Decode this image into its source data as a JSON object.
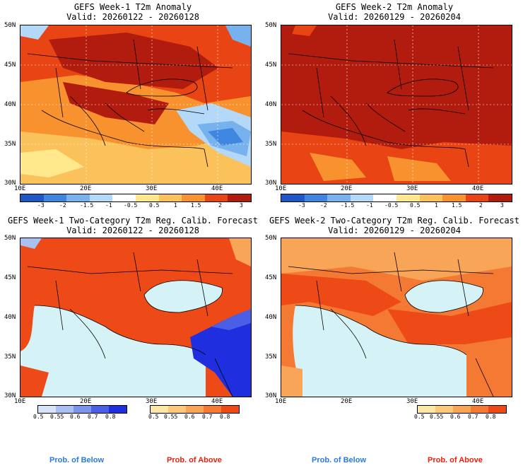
{
  "panels": [
    {
      "title": "GEFS Week-1 T2m Anomaly",
      "valid": "Valid: 20260122 - 20260128"
    },
    {
      "title": "GEFS Week-2 T2m Anomaly",
      "valid": "Valid: 20260129 - 20260204"
    },
    {
      "title": "GEFS Week-1 Two-Category T2m Reg. Calib. Forecast",
      "valid": "Valid: 20260122 - 20260128"
    },
    {
      "title": "GEFS Week-2 Two-Category T2m Reg. Calib. Forecast",
      "valid": "Valid: 20260129 - 20260204"
    }
  ],
  "axes": {
    "lat": [
      "50N",
      "45N",
      "40N",
      "35N",
      "30N"
    ],
    "lon": [
      "10E",
      "20E",
      "30E",
      "40E"
    ]
  },
  "anomaly_scale": [
    "-3",
    "-2",
    "-1.5",
    "-1",
    "-0.5",
    "0.5",
    "1",
    "1.5",
    "2",
    "3"
  ],
  "anomaly_colors": [
    "#1f57c8",
    "#3f86e0",
    "#77b2ee",
    "#b4d8f7",
    "#ffffff",
    "#ffe98c",
    "#fbc15a",
    "#f7922e",
    "#e84414",
    "#b11c0e"
  ],
  "prob_scale": [
    "0.5",
    "0.55",
    "0.6",
    "0.7",
    "0.8"
  ],
  "below_colors": [
    "#d7e3f7",
    "#a9c0f2",
    "#7c95ec",
    "#4a5fe6",
    "#1f2fe0"
  ],
  "above_colors": [
    "#fde7a4",
    "#fbc979",
    "#f8a557",
    "#f47a33",
    "#ee4a17"
  ],
  "legend": {
    "below": "Prob. of Below",
    "above": "Prob. of Above"
  }
}
